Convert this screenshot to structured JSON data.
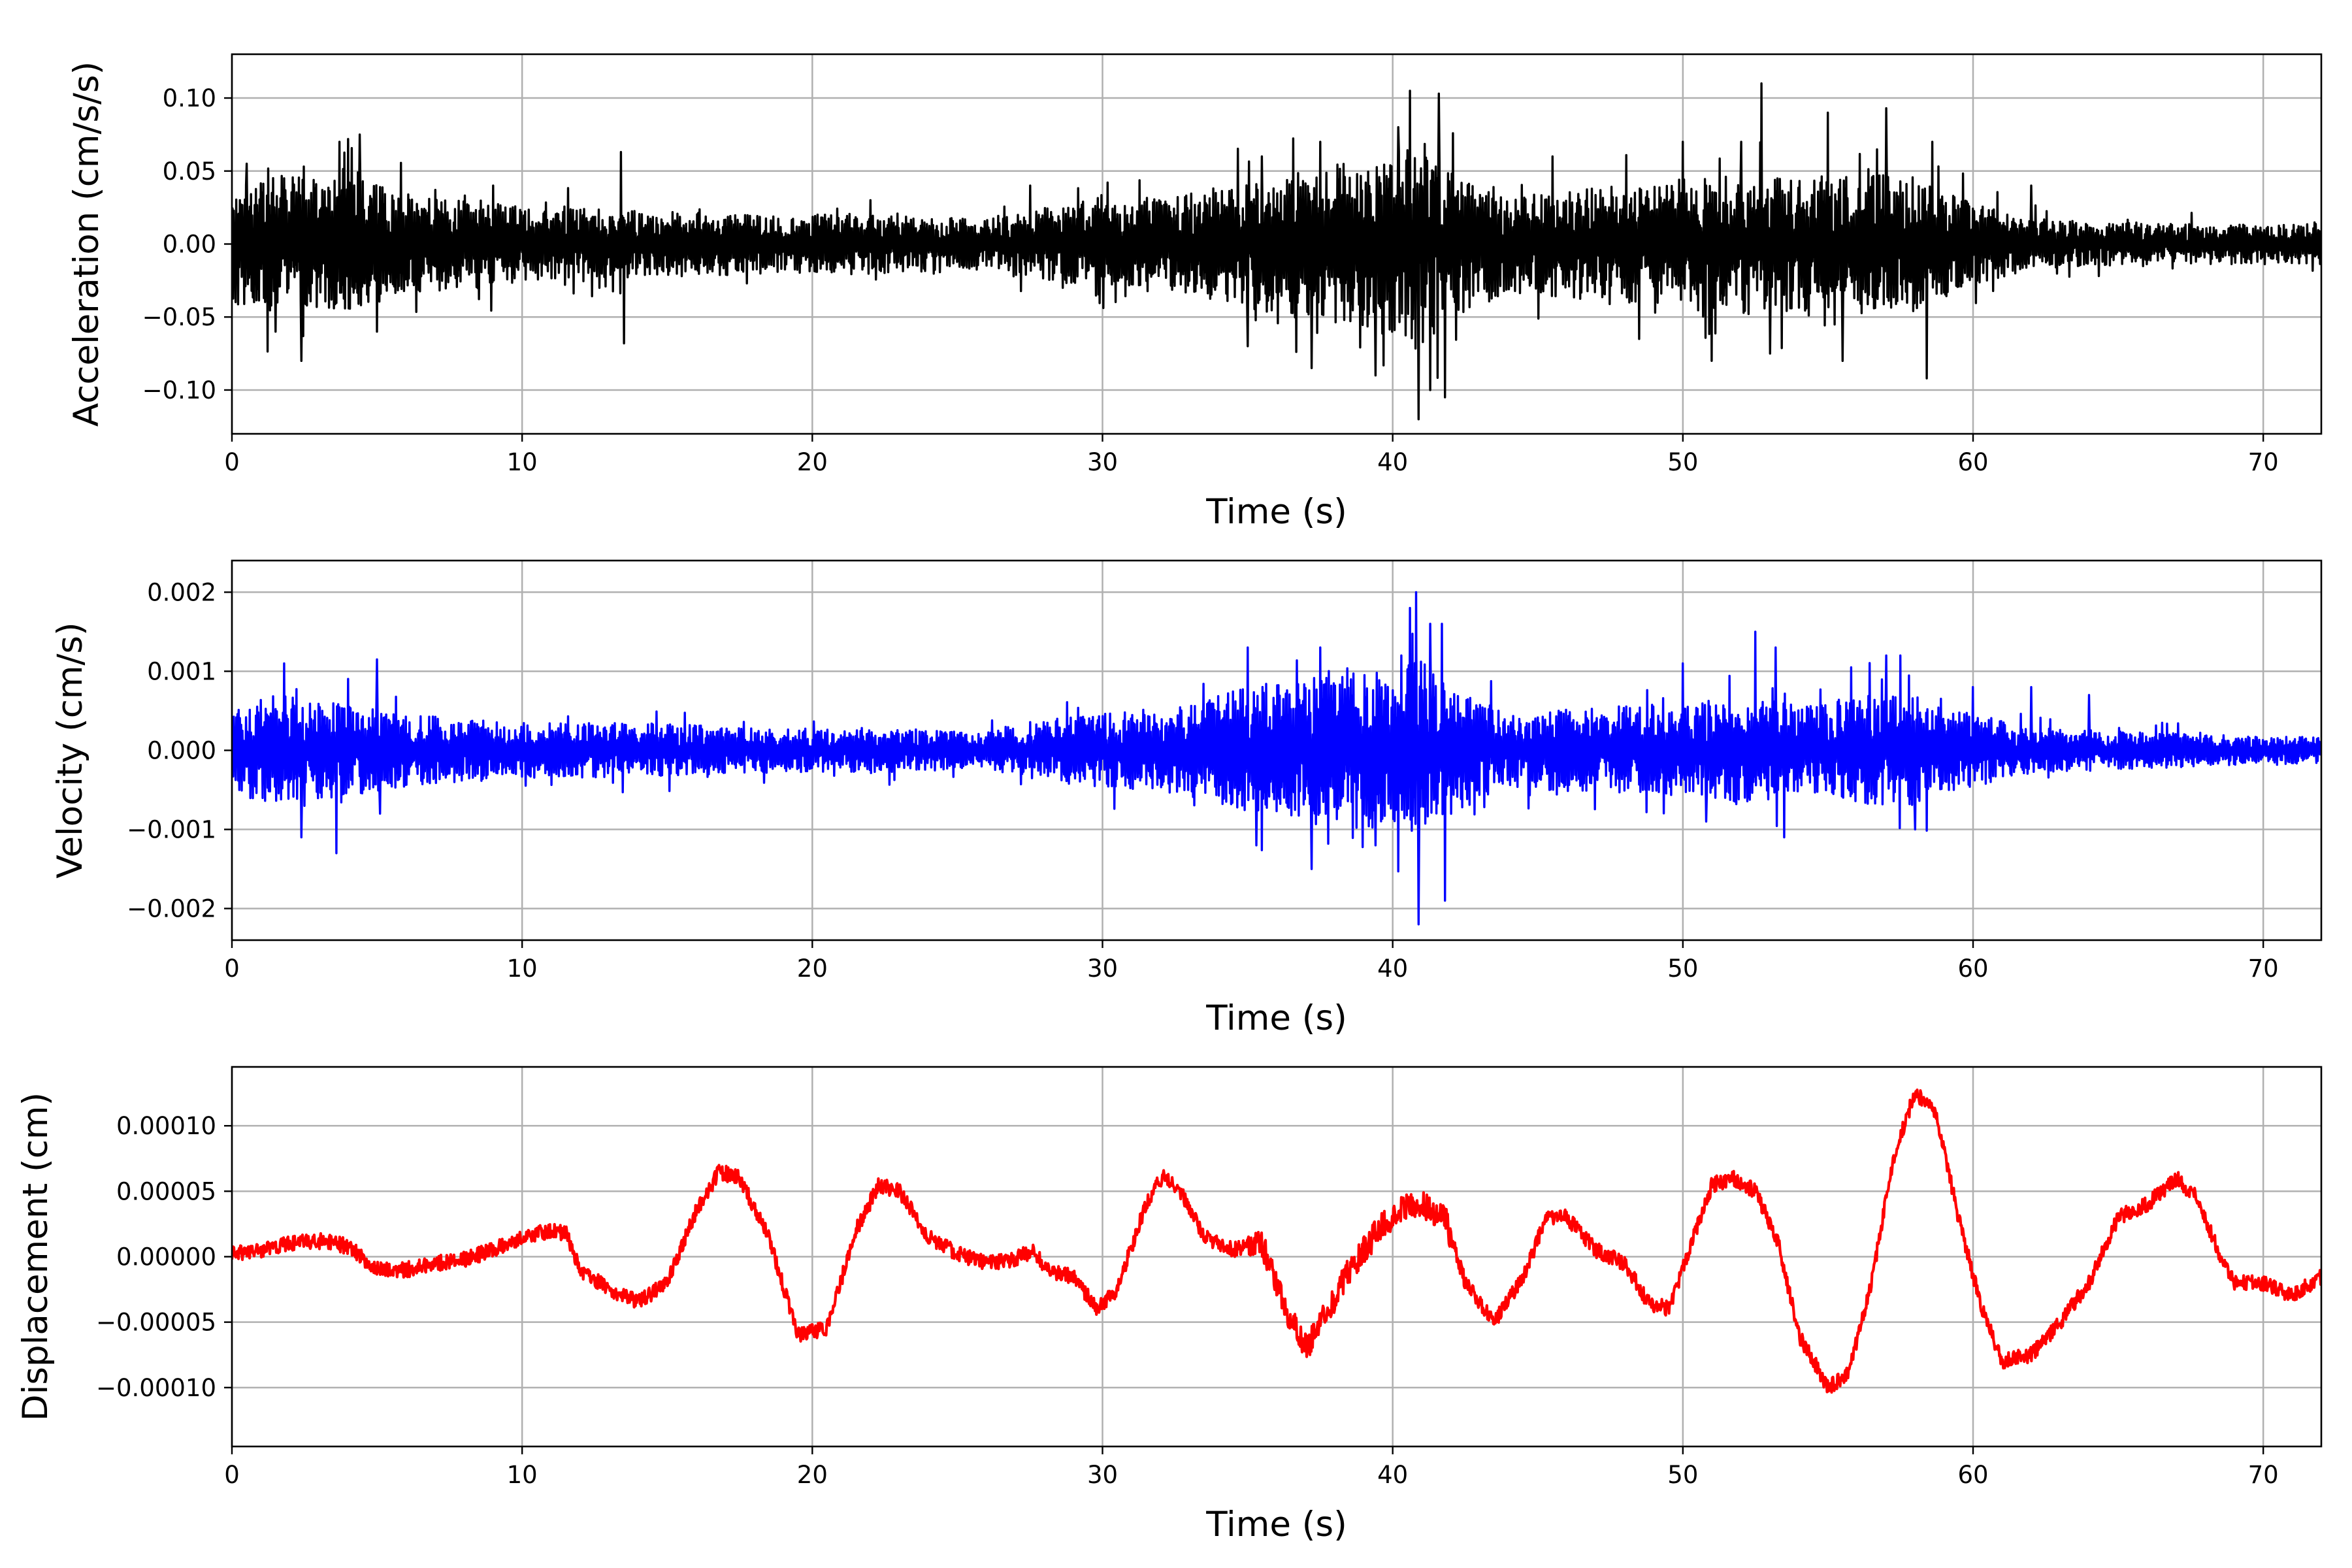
{
  "chart_data": [
    {
      "type": "line",
      "xlabel": "Time (s)",
      "ylabel": "Acceleration (cm/s/s)",
      "xlim": [
        0,
        72
      ],
      "ylim": [
        -0.13,
        0.13
      ],
      "xticks": [
        0,
        10,
        20,
        30,
        40,
        50,
        60,
        70
      ],
      "xtick_labels": [
        "0",
        "10",
        "20",
        "30",
        "40",
        "50",
        "60",
        "70"
      ],
      "yticks": [
        -0.1,
        -0.05,
        0.0,
        0.05,
        0.1
      ],
      "ytick_labels": [
        "−0.10",
        "−0.05",
        "0.00",
        "0.05",
        "0.10"
      ],
      "grid": true,
      "color": "#000000",
      "series": [
        {
          "envelope": [
            [
              0,
              0.035
            ],
            [
              1,
              0.04
            ],
            [
              2,
              0.04
            ],
            [
              4,
              0.04
            ],
            [
              6,
              0.03
            ],
            [
              8,
              0.028
            ],
            [
              10,
              0.022
            ],
            [
              14,
              0.02
            ],
            [
              18,
              0.018
            ],
            [
              22,
              0.018
            ],
            [
              26,
              0.015
            ],
            [
              28,
              0.022
            ],
            [
              30,
              0.025
            ],
            [
              33,
              0.03
            ],
            [
              35,
              0.038
            ],
            [
              37,
              0.045
            ],
            [
              40,
              0.055
            ],
            [
              41,
              0.06
            ],
            [
              42,
              0.045
            ],
            [
              44,
              0.03
            ],
            [
              46,
              0.032
            ],
            [
              48,
              0.035
            ],
            [
              50,
              0.035
            ],
            [
              52,
              0.042
            ],
            [
              54,
              0.04
            ],
            [
              56,
              0.042
            ],
            [
              58,
              0.04
            ],
            [
              60,
              0.025
            ],
            [
              62,
              0.015
            ],
            [
              66,
              0.012
            ],
            [
              70,
              0.012
            ],
            [
              72,
              0.012
            ]
          ],
          "spikes": [
            [
              0.5,
              0.055
            ],
            [
              1.5,
              -0.06
            ],
            [
              2.4,
              -0.08
            ],
            [
              3.7,
              0.07
            ],
            [
              4.4,
              0.075
            ],
            [
              5.0,
              -0.06
            ],
            [
              9.0,
              0.04
            ],
            [
              13.4,
              0.063
            ],
            [
              13.5,
              -0.068
            ],
            [
              22.0,
              0.03
            ],
            [
              27.5,
              0.04
            ],
            [
              35.0,
              -0.07
            ],
            [
              35.5,
              0.06
            ],
            [
              37.2,
              -0.085
            ],
            [
              37.5,
              0.07
            ],
            [
              39.4,
              -0.09
            ],
            [
              40.2,
              0.08
            ],
            [
              40.6,
              0.105
            ],
            [
              40.9,
              -0.12
            ],
            [
              41.3,
              -0.1
            ],
            [
              41.6,
              0.103
            ],
            [
              41.8,
              -0.105
            ],
            [
              45.5,
              0.06
            ],
            [
              48.5,
              -0.065
            ],
            [
              50.0,
              0.07
            ],
            [
              51.0,
              -0.08
            ],
            [
              52.0,
              0.07
            ],
            [
              52.7,
              0.11
            ],
            [
              53.0,
              -0.075
            ],
            [
              55.0,
              0.09
            ],
            [
              55.5,
              -0.08
            ],
            [
              57.0,
              0.093
            ],
            [
              58.4,
              -0.092
            ],
            [
              58.6,
              0.07
            ],
            [
              62.0,
              0.04
            ]
          ]
        }
      ]
    },
    {
      "type": "line",
      "xlabel": "Time (s)",
      "ylabel": "Velocity (cm/s)",
      "xlim": [
        0,
        72
      ],
      "ylim": [
        -0.0024,
        0.0024
      ],
      "xticks": [
        0,
        10,
        20,
        30,
        40,
        50,
        60,
        70
      ],
      "xtick_labels": [
        "0",
        "10",
        "20",
        "30",
        "40",
        "50",
        "60",
        "70"
      ],
      "yticks": [
        -0.002,
        -0.001,
        0.0,
        0.001,
        0.002
      ],
      "ytick_labels": [
        "−0.002",
        "−0.001",
        "0.000",
        "0.001",
        "0.002"
      ],
      "grid": true,
      "color": "#0000ff",
      "series": [
        {
          "envelope": [
            [
              0,
              0.0004
            ],
            [
              1,
              0.0006
            ],
            [
              2,
              0.0006
            ],
            [
              4,
              0.0005
            ],
            [
              6,
              0.0004
            ],
            [
              10,
              0.0003
            ],
            [
              14,
              0.0003
            ],
            [
              18,
              0.00025
            ],
            [
              22,
              0.00025
            ],
            [
              26,
              0.0002
            ],
            [
              28,
              0.00035
            ],
            [
              30,
              0.0004
            ],
            [
              33,
              0.0005
            ],
            [
              35,
              0.0007
            ],
            [
              37,
              0.0008
            ],
            [
              40,
              0.0009
            ],
            [
              41,
              0.001
            ],
            [
              42,
              0.0007
            ],
            [
              44,
              0.0004
            ],
            [
              46,
              0.00045
            ],
            [
              48,
              0.0005
            ],
            [
              50,
              0.0005
            ],
            [
              52,
              0.0006
            ],
            [
              54,
              0.0005
            ],
            [
              56,
              0.0006
            ],
            [
              58,
              0.0006
            ],
            [
              60,
              0.0004
            ],
            [
              62,
              0.00025
            ],
            [
              66,
              0.0002
            ],
            [
              70,
              0.00015
            ],
            [
              72,
              0.00015
            ]
          ],
          "spikes": [
            [
              1.8,
              0.0011
            ],
            [
              2.4,
              0.0012
            ],
            [
              2.4,
              -0.0011
            ],
            [
              3.6,
              -0.0013
            ],
            [
              5.0,
              0.00115
            ],
            [
              5.1,
              -0.0008
            ],
            [
              35.0,
              0.0013
            ],
            [
              35.3,
              -0.0012
            ],
            [
              37.2,
              -0.0015
            ],
            [
              37.5,
              0.0013
            ],
            [
              39.4,
              -0.0012
            ],
            [
              40.3,
              0.0012
            ],
            [
              40.6,
              0.0018
            ],
            [
              40.8,
              0.002
            ],
            [
              40.9,
              -0.0022
            ],
            [
              41.3,
              0.0016
            ],
            [
              41.7,
              0.0016
            ],
            [
              41.8,
              -0.0019
            ],
            [
              50.0,
              0.0011
            ],
            [
              50.8,
              -0.0009
            ],
            [
              52.5,
              0.0015
            ],
            [
              53.2,
              0.0013
            ],
            [
              53.5,
              -0.0011
            ],
            [
              57.0,
              0.0012
            ],
            [
              57.5,
              0.0012
            ],
            [
              58.0,
              -0.001
            ],
            [
              60.0,
              0.0008
            ],
            [
              62.0,
              0.0008
            ],
            [
              64.0,
              0.0007
            ]
          ]
        }
      ]
    },
    {
      "type": "line",
      "xlabel": "Time (s)",
      "ylabel": "Displacement (cm)",
      "xlim": [
        0,
        72
      ],
      "ylim": [
        -0.000145,
        0.000145
      ],
      "xticks": [
        0,
        10,
        20,
        30,
        40,
        50,
        60,
        70
      ],
      "xtick_labels": [
        "0",
        "10",
        "20",
        "30",
        "40",
        "50",
        "60",
        "70"
      ],
      "yticks": [
        -0.0001,
        -5e-05,
        0.0,
        5e-05,
        0.0001
      ],
      "ytick_labels": [
        "−0.00010",
        "−0.00005",
        "0.00000",
        "0.00005",
        "0.00010"
      ],
      "grid": true,
      "color": "#ff0000",
      "series": [
        {
          "points": [
            [
              0,
              2e-06
            ],
            [
              1,
              5e-06
            ],
            [
              2,
              1e-05
            ],
            [
              3,
              1.2e-05
            ],
            [
              4,
              8e-06
            ],
            [
              5,
              -1e-05
            ],
            [
              6,
              -1e-05
            ],
            [
              7,
              -5e-06
            ],
            [
              8,
              -2e-06
            ],
            [
              9,
              5e-06
            ],
            [
              10,
              1.5e-05
            ],
            [
              11,
              2e-05
            ],
            [
              11.5,
              1.8e-05
            ],
            [
              12,
              -1e-05
            ],
            [
              13,
              -2.5e-05
            ],
            [
              14,
              -3.5e-05
            ],
            [
              15,
              -2e-05
            ],
            [
              16,
              3.5e-05
            ],
            [
              16.8,
              6.5e-05
            ],
            [
              17.5,
              6e-05
            ],
            [
              18.5,
              1.5e-05
            ],
            [
              19.5,
              -6e-05
            ],
            [
              20.5,
              -5.5e-05
            ],
            [
              21.5,
              2e-05
            ],
            [
              22.3,
              5.5e-05
            ],
            [
              23,
              5e-05
            ],
            [
              24,
              1.5e-05
            ],
            [
              25,
              2e-06
            ],
            [
              26,
              -5e-06
            ],
            [
              27,
              -2e-06
            ],
            [
              27.6,
              5e-06
            ],
            [
              28.2,
              -1.2e-05
            ],
            [
              29,
              -1.5e-05
            ],
            [
              29.8,
              -4e-05
            ],
            [
              30.5,
              -2.5e-05
            ],
            [
              31.5,
              4e-05
            ],
            [
              32.1,
              6.3e-05
            ],
            [
              32.8,
              4.5e-05
            ],
            [
              33.5,
              1.5e-05
            ],
            [
              34.5,
              5e-06
            ],
            [
              35.5,
              1e-05
            ],
            [
              36.3,
              -4e-05
            ],
            [
              37,
              -7e-05
            ],
            [
              37.8,
              -4e-05
            ],
            [
              38.5,
              -1e-05
            ],
            [
              39.5,
              2e-05
            ],
            [
              40.5,
              4e-05
            ],
            [
              41,
              4e-05
            ],
            [
              41.8,
              3e-05
            ],
            [
              42.5,
              -2e-05
            ],
            [
              43.5,
              -5e-05
            ],
            [
              44.5,
              -1.5e-05
            ],
            [
              45.3,
              3e-05
            ],
            [
              46,
              3e-05
            ],
            [
              47,
              5e-06
            ],
            [
              48,
              -5e-06
            ],
            [
              48.8,
              -3.5e-05
            ],
            [
              49.5,
              -4e-05
            ],
            [
              50.3,
              1e-05
            ],
            [
              51,
              5.5e-05
            ],
            [
              51.7,
              6e-05
            ],
            [
              52.5,
              5e-05
            ],
            [
              53.3,
              1e-05
            ],
            [
              54,
              -6e-05
            ],
            [
              55,
              -0.0001
            ],
            [
              55.7,
              -9e-05
            ],
            [
              56.5,
              -2e-05
            ],
            [
              57.3,
              8e-05
            ],
            [
              58,
              0.000125
            ],
            [
              58.7,
              0.00011
            ],
            [
              59.5,
              3e-05
            ],
            [
              60.3,
              -4e-05
            ],
            [
              61,
              -8e-05
            ],
            [
              62,
              -7.5e-05
            ],
            [
              63,
              -5e-05
            ],
            [
              64,
              -2e-05
            ],
            [
              65,
              3e-05
            ],
            [
              66,
              4e-05
            ],
            [
              67,
              6e-05
            ],
            [
              67.7,
              4.5e-05
            ],
            [
              68.5,
              2e-06
            ],
            [
              69,
              -2e-05
            ],
            [
              70,
              -2e-05
            ],
            [
              71,
              -3e-05
            ],
            [
              72,
              -1.5e-05
            ]
          ],
          "noise_amplitude": 6e-06
        }
      ]
    }
  ]
}
